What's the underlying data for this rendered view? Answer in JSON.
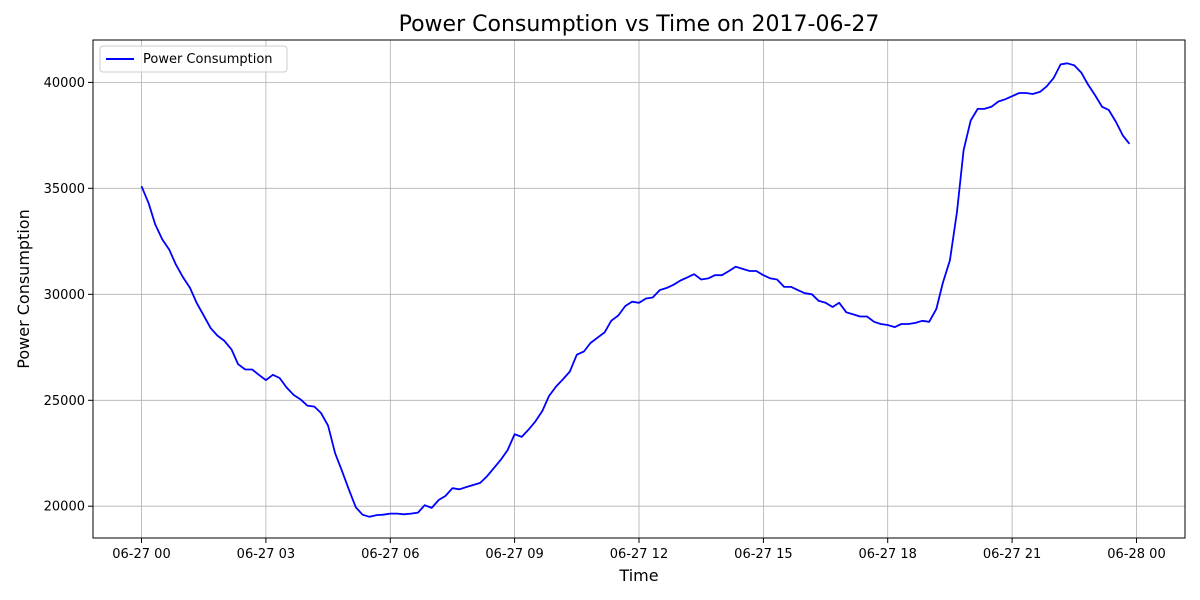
{
  "chart_data": {
    "type": "line",
    "title": "Power Consumption vs Time on 2017-06-27",
    "xlabel": "Time",
    "ylabel": "Power Consumption",
    "xlim_hours": [
      -1.17,
      25.17
    ],
    "ylim": [
      18500,
      42000
    ],
    "x_ticks": [
      {
        "hours": 0,
        "label": "06-27 00"
      },
      {
        "hours": 3,
        "label": "06-27 03"
      },
      {
        "hours": 6,
        "label": "06-27 06"
      },
      {
        "hours": 9,
        "label": "06-27 09"
      },
      {
        "hours": 12,
        "label": "06-27 12"
      },
      {
        "hours": 15,
        "label": "06-27 15"
      },
      {
        "hours": 18,
        "label": "06-27 18"
      },
      {
        "hours": 21,
        "label": "06-27 21"
      },
      {
        "hours": 24,
        "label": "06-28 00"
      }
    ],
    "y_ticks": [
      {
        "value": 20000,
        "label": "20000"
      },
      {
        "value": 25000,
        "label": "25000"
      },
      {
        "value": 30000,
        "label": "30000"
      },
      {
        "value": 35000,
        "label": "35000"
      },
      {
        "value": 40000,
        "label": "40000"
      }
    ],
    "grid": true,
    "legend_position": "top-left",
    "series": [
      {
        "name": "Power Consumption",
        "color": "#0000ff",
        "points": [
          [
            0.0,
            35100
          ],
          [
            0.17,
            34300
          ],
          [
            0.33,
            33300
          ],
          [
            0.5,
            32600
          ],
          [
            0.67,
            32100
          ],
          [
            0.83,
            31400
          ],
          [
            1.0,
            30800
          ],
          [
            1.17,
            30300
          ],
          [
            1.33,
            29600
          ],
          [
            1.5,
            29000
          ],
          [
            1.67,
            28400
          ],
          [
            1.83,
            28050
          ],
          [
            2.0,
            27800
          ],
          [
            2.17,
            27400
          ],
          [
            2.33,
            26700
          ],
          [
            2.5,
            26450
          ],
          [
            2.67,
            26450
          ],
          [
            2.83,
            26200
          ],
          [
            3.0,
            25950
          ],
          [
            3.17,
            26200
          ],
          [
            3.33,
            26050
          ],
          [
            3.5,
            25600
          ],
          [
            3.67,
            25250
          ],
          [
            3.83,
            25050
          ],
          [
            4.0,
            24750
          ],
          [
            4.17,
            24700
          ],
          [
            4.33,
            24400
          ],
          [
            4.5,
            23800
          ],
          [
            4.67,
            22500
          ],
          [
            4.83,
            21700
          ],
          [
            5.0,
            20800
          ],
          [
            5.17,
            19950
          ],
          [
            5.33,
            19600
          ],
          [
            5.5,
            19500
          ],
          [
            5.67,
            19580
          ],
          [
            5.83,
            19600
          ],
          [
            6.0,
            19650
          ],
          [
            6.17,
            19650
          ],
          [
            6.33,
            19620
          ],
          [
            6.5,
            19650
          ],
          [
            6.67,
            19700
          ],
          [
            6.83,
            20050
          ],
          [
            7.0,
            19920
          ],
          [
            7.17,
            20300
          ],
          [
            7.33,
            20480
          ],
          [
            7.5,
            20850
          ],
          [
            7.67,
            20800
          ],
          [
            7.83,
            20900
          ],
          [
            8.0,
            21000
          ],
          [
            8.17,
            21100
          ],
          [
            8.33,
            21400
          ],
          [
            8.5,
            21800
          ],
          [
            8.67,
            22200
          ],
          [
            8.83,
            22650
          ],
          [
            9.0,
            23400
          ],
          [
            9.17,
            23270
          ],
          [
            9.33,
            23600
          ],
          [
            9.5,
            24000
          ],
          [
            9.67,
            24500
          ],
          [
            9.83,
            25200
          ],
          [
            10.0,
            25650
          ],
          [
            10.17,
            26000
          ],
          [
            10.33,
            26350
          ],
          [
            10.5,
            27150
          ],
          [
            10.67,
            27300
          ],
          [
            10.83,
            27700
          ],
          [
            11.0,
            27950
          ],
          [
            11.17,
            28200
          ],
          [
            11.33,
            28750
          ],
          [
            11.5,
            29000
          ],
          [
            11.67,
            29450
          ],
          [
            11.83,
            29650
          ],
          [
            12.0,
            29600
          ],
          [
            12.17,
            29800
          ],
          [
            12.33,
            29850
          ],
          [
            12.5,
            30200
          ],
          [
            12.67,
            30300
          ],
          [
            12.83,
            30450
          ],
          [
            13.0,
            30650
          ],
          [
            13.17,
            30800
          ],
          [
            13.33,
            30950
          ],
          [
            13.5,
            30700
          ],
          [
            13.67,
            30750
          ],
          [
            13.83,
            30900
          ],
          [
            14.0,
            30900
          ],
          [
            14.17,
            31100
          ],
          [
            14.33,
            31300
          ],
          [
            14.5,
            31200
          ],
          [
            14.67,
            31100
          ],
          [
            14.83,
            31100
          ],
          [
            15.0,
            30900
          ],
          [
            15.17,
            30750
          ],
          [
            15.33,
            30700
          ],
          [
            15.5,
            30350
          ],
          [
            15.67,
            30350
          ],
          [
            15.83,
            30200
          ],
          [
            16.0,
            30050
          ],
          [
            16.17,
            30000
          ],
          [
            16.33,
            29700
          ],
          [
            16.5,
            29600
          ],
          [
            16.67,
            29400
          ],
          [
            16.83,
            29600
          ],
          [
            17.0,
            29150
          ],
          [
            17.17,
            29050
          ],
          [
            17.33,
            28950
          ],
          [
            17.5,
            28950
          ],
          [
            17.67,
            28700
          ],
          [
            17.83,
            28600
          ],
          [
            18.0,
            28550
          ],
          [
            18.17,
            28450
          ],
          [
            18.33,
            28600
          ],
          [
            18.5,
            28600
          ],
          [
            18.67,
            28650
          ],
          [
            18.83,
            28750
          ],
          [
            19.0,
            28700
          ],
          [
            19.17,
            29300
          ],
          [
            19.33,
            30550
          ],
          [
            19.5,
            31600
          ],
          [
            19.67,
            33900
          ],
          [
            19.83,
            36800
          ],
          [
            20.0,
            38200
          ],
          [
            20.17,
            38750
          ],
          [
            20.33,
            38750
          ],
          [
            20.5,
            38850
          ],
          [
            20.67,
            39100
          ],
          [
            20.83,
            39200
          ],
          [
            21.0,
            39350
          ],
          [
            21.17,
            39500
          ],
          [
            21.33,
            39500
          ],
          [
            21.5,
            39450
          ],
          [
            21.67,
            39550
          ],
          [
            21.83,
            39800
          ],
          [
            22.0,
            40200
          ],
          [
            22.17,
            40850
          ],
          [
            22.33,
            40900
          ],
          [
            22.5,
            40800
          ],
          [
            22.67,
            40450
          ],
          [
            22.83,
            39900
          ],
          [
            23.0,
            39400
          ],
          [
            23.17,
            38850
          ],
          [
            23.33,
            38700
          ],
          [
            23.5,
            38150
          ],
          [
            23.67,
            37500
          ],
          [
            23.83,
            37100
          ]
        ]
      }
    ]
  }
}
